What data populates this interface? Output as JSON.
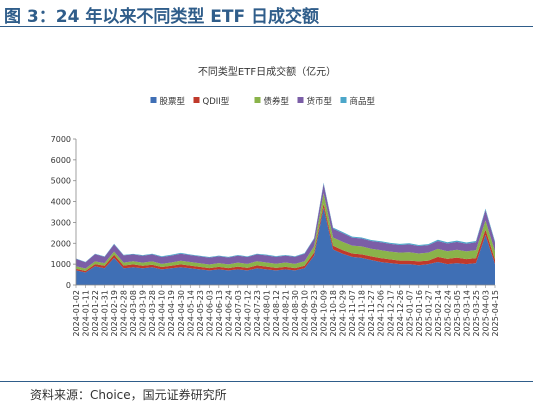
{
  "figure": {
    "title": "图 3：24 年以来不同类型 ETF 日成交额",
    "source": "资料来源：Choice，国元证券研究所"
  },
  "chart_data": {
    "type": "area",
    "stacked": true,
    "title": "不同类型ETF日成交额（亿元）",
    "xlabel": "",
    "ylabel": "",
    "ylim": [
      0,
      7000
    ],
    "yticks": [
      0,
      1000,
      2000,
      3000,
      4000,
      5000,
      6000,
      7000
    ],
    "grid": false,
    "legend_position": "top",
    "x": [
      "2024-01-02",
      "2024-01-11",
      "2024-01-22",
      "2024-01-31",
      "2024-02-19",
      "2024-02-28",
      "2024-03-08",
      "2024-03-19",
      "2024-03-28",
      "2024-04-10",
      "2024-04-19",
      "2024-04-30",
      "2024-05-14",
      "2024-05-23",
      "2024-06-03",
      "2024-06-13",
      "2024-06-24",
      "2024-07-03",
      "2024-07-12",
      "2024-07-23",
      "2024-08-01",
      "2024-08-12",
      "2024-08-21",
      "2024-08-30",
      "2024-09-10",
      "2024-09-23",
      "2024-10-09",
      "2024-10-18",
      "2024-10-29",
      "2024-11-07",
      "2024-11-18",
      "2024-11-27",
      "2024-12-06",
      "2024-12-17",
      "2024-12-26",
      "2025-01-07",
      "2025-01-16",
      "2025-01-27",
      "2025-02-14",
      "2025-02-24",
      "2025-03-05",
      "2025-03-14",
      "2025-03-25",
      "2025-04-03",
      "2025-04-15"
    ],
    "series": [
      {
        "name": "股票型",
        "color": "#3f6fb5",
        "values": [
          700,
          600,
          900,
          800,
          1300,
          800,
          850,
          800,
          850,
          750,
          800,
          850,
          800,
          750,
          700,
          750,
          700,
          750,
          700,
          800,
          750,
          700,
          750,
          700,
          800,
          1400,
          3700,
          1700,
          1500,
          1350,
          1300,
          1200,
          1100,
          1050,
          1000,
          1000,
          950,
          1000,
          1100,
          1000,
          1050,
          1000,
          1050,
          2400,
          1000
        ]
      },
      {
        "name": "QDII型",
        "color": "#c0392b",
        "values": [
          80,
          70,
          100,
          120,
          150,
          130,
          140,
          120,
          120,
          110,
          120,
          140,
          130,
          120,
          110,
          120,
          110,
          130,
          120,
          140,
          130,
          120,
          120,
          110,
          120,
          150,
          200,
          180,
          170,
          160,
          170,
          170,
          190,
          180,
          170,
          170,
          180,
          170,
          250,
          250,
          260,
          240,
          240,
          260,
          210
        ]
      },
      {
        "name": "债券型",
        "color": "#8ab34a",
        "values": [
          120,
          120,
          130,
          130,
          150,
          140,
          150,
          150,
          160,
          150,
          160,
          170,
          170,
          170,
          170,
          180,
          180,
          190,
          190,
          200,
          200,
          200,
          210,
          200,
          220,
          300,
          500,
          400,
          400,
          380,
          380,
          370,
          380,
          370,
          380,
          400,
          380,
          380,
          380,
          370,
          380,
          370,
          380,
          430,
          400
        ]
      },
      {
        "name": "货币型",
        "color": "#7b5ea7",
        "values": [
          350,
          300,
          350,
          300,
          350,
          350,
          330,
          330,
          340,
          330,
          330,
          340,
          330,
          330,
          330,
          330,
          330,
          340,
          330,
          330,
          340,
          330,
          330,
          340,
          360,
          360,
          450,
          420,
          420,
          380,
          380,
          370,
          380,
          370,
          370,
          380,
          360,
          360,
          380,
          370,
          380,
          370,
          380,
          500,
          420
        ]
      },
      {
        "name": "商品型",
        "color": "#4ba6c9",
        "values": [
          20,
          20,
          20,
          20,
          25,
          25,
          25,
          30,
          30,
          40,
          40,
          40,
          35,
          35,
          30,
          30,
          30,
          30,
          30,
          30,
          35,
          35,
          30,
          30,
          30,
          40,
          60,
          50,
          50,
          50,
          50,
          50,
          50,
          50,
          50,
          50,
          50,
          50,
          60,
          60,
          60,
          60,
          60,
          70,
          70
        ]
      }
    ]
  }
}
